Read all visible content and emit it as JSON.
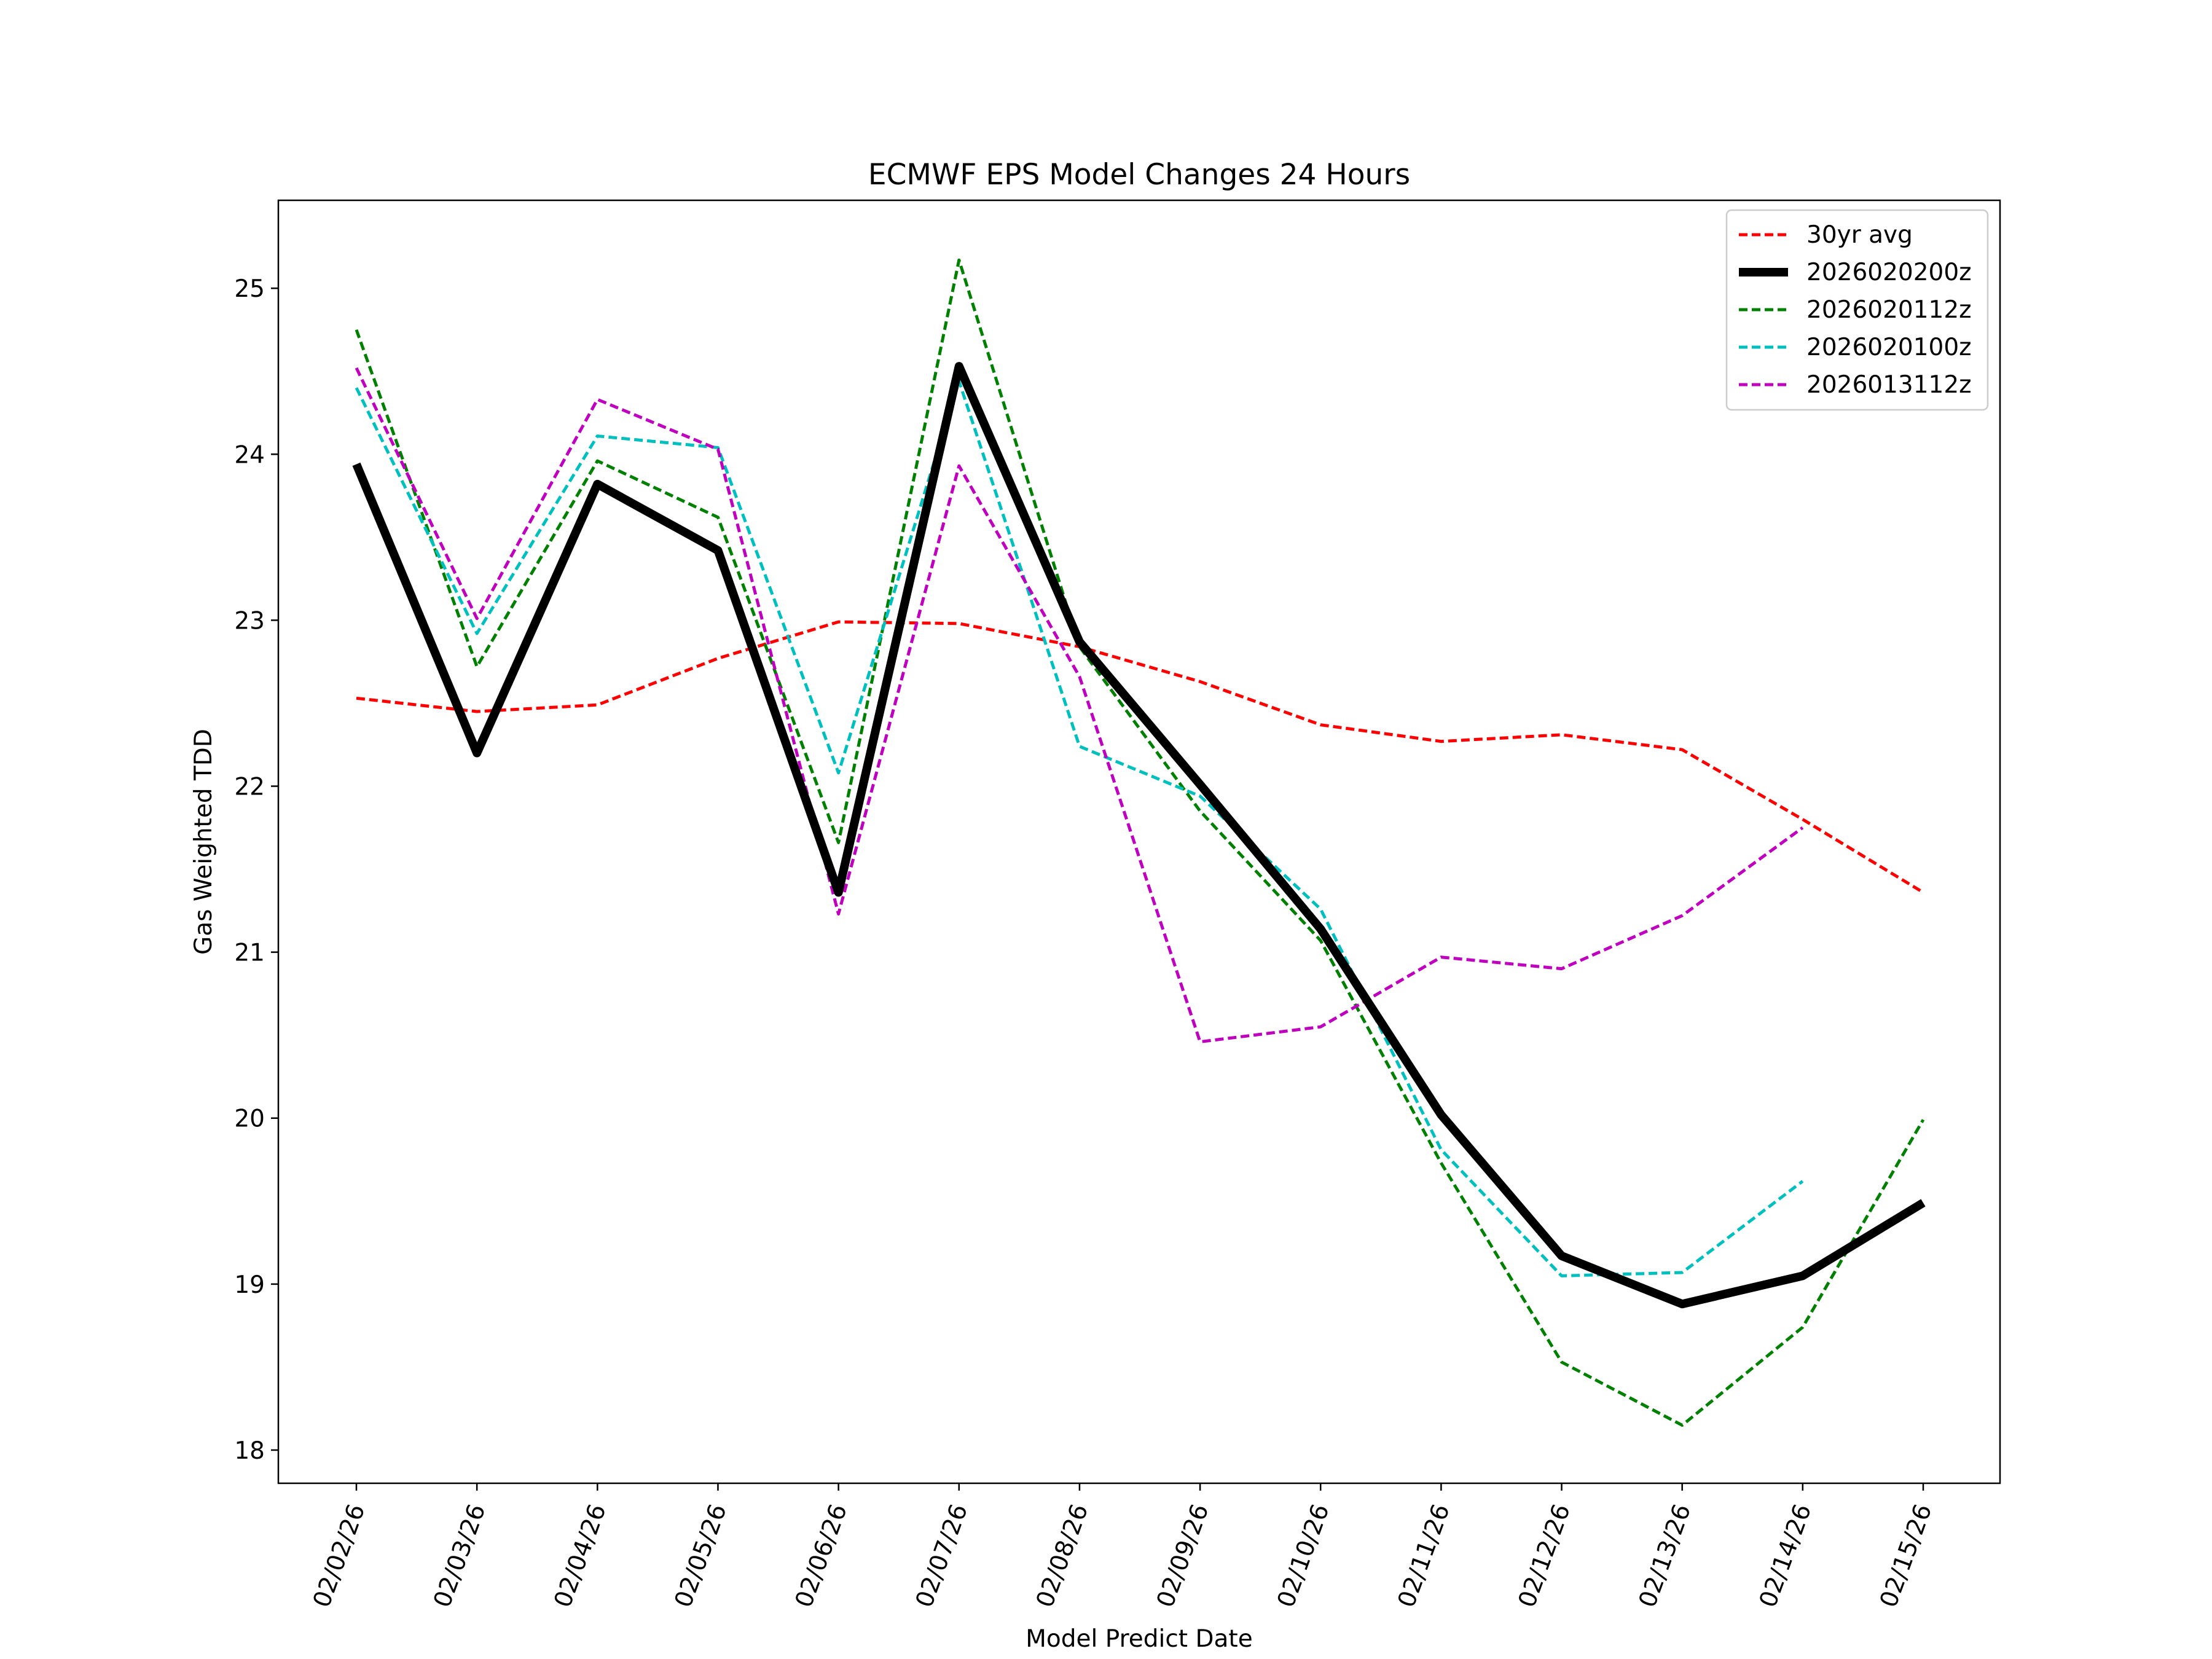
{
  "chart_data": {
    "type": "line",
    "title": "ECMWF EPS Model Changes 24 Hours",
    "xlabel": "Model Predict Date",
    "ylabel": "Gas Weighted TDD",
    "categories": [
      "02/02/26",
      "02/03/26",
      "02/04/26",
      "02/05/26",
      "02/06/26",
      "02/07/26",
      "02/08/26",
      "02/09/26",
      "02/10/26",
      "02/11/26",
      "02/12/26",
      "02/13/26",
      "02/14/26",
      "02/15/26"
    ],
    "yticks": [
      18,
      19,
      20,
      21,
      22,
      23,
      24,
      25
    ],
    "ylim": [
      17.8,
      25.53
    ],
    "grid": false,
    "legend_position": "top-right",
    "series": [
      {
        "name": "30yr avg",
        "color": "#ff0000",
        "style": "dashed",
        "weight": "thin",
        "values": [
          22.53,
          22.45,
          22.49,
          22.77,
          22.99,
          22.98,
          22.84,
          22.63,
          22.37,
          22.27,
          22.31,
          22.22,
          21.8,
          21.36
        ]
      },
      {
        "name": "2026020200z",
        "color": "#000000",
        "style": "solid",
        "weight": "thick",
        "values": [
          23.94,
          22.2,
          23.82,
          23.42,
          21.36,
          24.53,
          22.87,
          22.01,
          21.14,
          20.02,
          19.17,
          18.88,
          19.05,
          19.49
        ]
      },
      {
        "name": "2026020112z",
        "color": "#008000",
        "style": "dashed",
        "weight": "thin",
        "values": [
          24.75,
          22.72,
          23.96,
          23.62,
          21.66,
          25.17,
          22.84,
          21.85,
          21.07,
          19.73,
          18.53,
          18.15,
          18.74,
          19.99
        ]
      },
      {
        "name": "2026020100z",
        "color": "#00bfbf",
        "style": "dashed",
        "weight": "thin",
        "values": [
          24.4,
          22.92,
          24.11,
          24.04,
          22.08,
          24.44,
          22.24,
          21.94,
          21.26,
          19.81,
          19.05,
          19.07,
          19.62,
          null
        ]
      },
      {
        "name": "2026013112z",
        "color": "#bf00bf",
        "style": "dashed",
        "weight": "thin",
        "values": [
          24.52,
          23.01,
          24.33,
          24.03,
          21.23,
          23.93,
          22.66,
          20.46,
          20.55,
          20.97,
          20.9,
          21.22,
          21.75,
          null
        ]
      }
    ]
  }
}
